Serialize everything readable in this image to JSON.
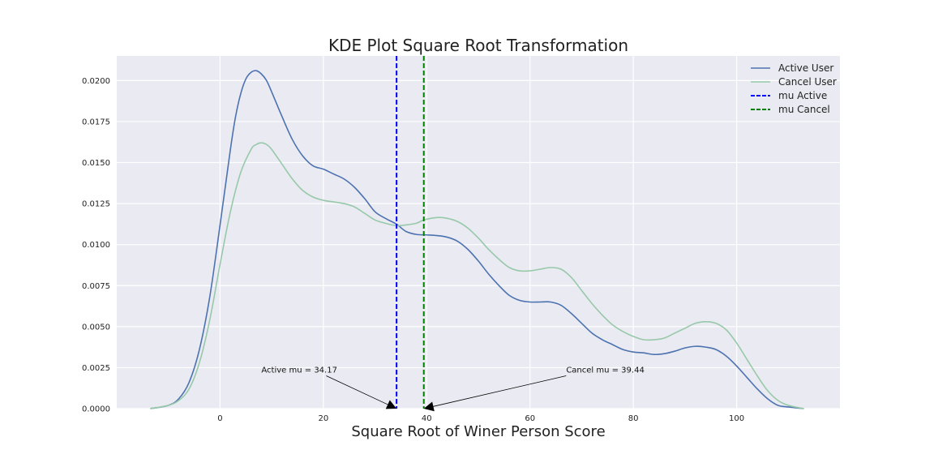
{
  "chart_data": {
    "type": "line",
    "title": "KDE Plot Square Root Transformation",
    "xlabel": "Square Root of Winer Person Score",
    "ylabel": "",
    "xlim": [
      -20,
      120
    ],
    "ylim": [
      0,
      0.0215
    ],
    "x_ticks": [
      0,
      20,
      40,
      60,
      80,
      100
    ],
    "x_tick_labels": [
      "0",
      "20",
      "40",
      "60",
      "80",
      "100"
    ],
    "y_ticks": [
      0,
      0.0025,
      0.005,
      0.0075,
      0.01,
      0.0125,
      0.015,
      0.0175,
      0.02
    ],
    "y_tick_labels": [
      "0.0000",
      "0.0025",
      "0.0050",
      "0.0075",
      "0.0100",
      "0.0125",
      "0.0150",
      "0.0175",
      "0.0200"
    ],
    "grid": true,
    "legend_position": "top-right",
    "series": [
      {
        "name": "Active User",
        "color": "#4c72b0",
        "x": [
          -13.5,
          -10,
          -8,
          -6,
          -4,
          -2,
          0,
          2,
          3,
          4,
          5,
          6,
          7,
          8,
          9,
          10,
          12,
          14,
          16,
          18,
          20,
          22,
          24,
          26,
          28,
          30,
          32,
          34.17,
          36,
          38,
          40,
          42,
          44,
          46,
          48,
          50,
          52,
          54,
          56,
          58,
          60,
          62,
          64,
          66,
          68,
          70,
          72,
          74,
          76,
          78,
          80,
          82,
          84,
          86,
          88,
          90,
          92,
          94,
          96,
          98,
          100,
          102,
          104,
          106,
          108,
          110,
          113
        ],
        "y": [
          0.0,
          0.0002,
          0.0006,
          0.0016,
          0.0036,
          0.0068,
          0.0112,
          0.0158,
          0.0178,
          0.0192,
          0.0201,
          0.0205,
          0.0206,
          0.0204,
          0.02,
          0.0193,
          0.0178,
          0.0164,
          0.0154,
          0.0148,
          0.0146,
          0.0143,
          0.014,
          0.0135,
          0.0128,
          0.012,
          0.0116,
          0.01124,
          0.0108,
          0.01062,
          0.01059,
          0.01055,
          0.01045,
          0.0102,
          0.0097,
          0.009,
          0.0082,
          0.0075,
          0.0069,
          0.0066,
          0.0065,
          0.0065,
          0.0065,
          0.0063,
          0.0058,
          0.0052,
          0.0046,
          0.0042,
          0.0039,
          0.0036,
          0.00345,
          0.0034,
          0.0033,
          0.00335,
          0.0035,
          0.0037,
          0.0038,
          0.00375,
          0.0036,
          0.0032,
          0.0026,
          0.0019,
          0.0012,
          0.0006,
          0.0002,
          0.0001,
          0.0
        ]
      },
      {
        "name": "Cancel User",
        "color": "#97c9a9",
        "x": [
          -13.5,
          -10,
          -8,
          -6,
          -4,
          -2,
          0,
          2,
          4,
          6,
          7,
          8,
          9,
          10,
          12,
          14,
          16,
          18,
          20,
          22,
          24,
          26,
          28,
          30,
          32,
          34.17,
          36,
          38,
          39.44,
          42,
          44,
          46,
          48,
          50,
          52,
          54,
          56,
          58,
          60,
          62,
          64,
          66,
          68,
          70,
          72,
          74,
          76,
          78,
          80,
          82,
          84,
          86,
          88,
          90,
          92,
          94,
          96,
          98,
          100,
          102,
          104,
          106,
          108,
          110,
          113
        ],
        "y": [
          0.0,
          0.0002,
          0.0005,
          0.0012,
          0.0028,
          0.0054,
          0.0088,
          0.012,
          0.0144,
          0.0158,
          0.0161,
          0.0162,
          0.0161,
          0.0158,
          0.0149,
          0.014,
          0.0133,
          0.0129,
          0.0127,
          0.0126,
          0.0125,
          0.0123,
          0.0119,
          0.0115,
          0.0113,
          0.01115,
          0.0112,
          0.0113,
          0.0115,
          0.01165,
          0.0116,
          0.0114,
          0.011,
          0.0104,
          0.0097,
          0.0091,
          0.0086,
          0.0084,
          0.0084,
          0.0085,
          0.0086,
          0.0085,
          0.008,
          0.0072,
          0.0064,
          0.0057,
          0.0051,
          0.0047,
          0.0044,
          0.0042,
          0.0042,
          0.0043,
          0.0046,
          0.0049,
          0.0052,
          0.0053,
          0.0052,
          0.0048,
          0.004,
          0.003,
          0.002,
          0.0011,
          0.0005,
          0.0002,
          0.0
        ]
      }
    ],
    "vlines": [
      {
        "name": "mu Active",
        "x": 34.17,
        "color": "#0000ff"
      },
      {
        "name": "mu Cancel",
        "x": 39.44,
        "color": "#008000"
      }
    ],
    "annotations": [
      {
        "text": "Active mu = 34.17",
        "xy": [
          34.17,
          0.0
        ],
        "xytext": [
          8,
          0.002
        ],
        "align": "left"
      },
      {
        "text": "Cancel mu = 39.44",
        "xy": [
          39.44,
          0.0
        ],
        "xytext": [
          67,
          0.002
        ],
        "align": "left"
      }
    ]
  }
}
